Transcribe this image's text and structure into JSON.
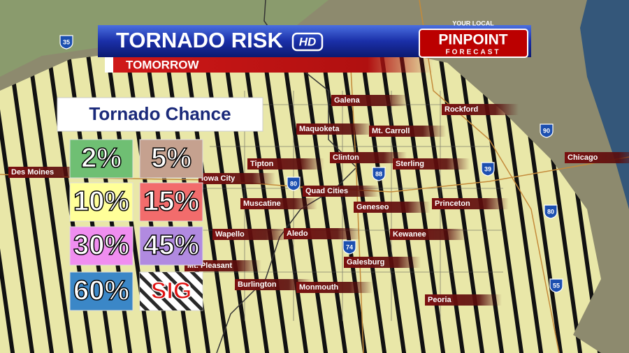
{
  "header": {
    "title": "TORNADO RISK",
    "badge": "HD",
    "subtitle": "TOMORROW"
  },
  "branding": {
    "top": "YOUR LOCAL",
    "main": "PINPOINT",
    "bottom": "FORECAST"
  },
  "legend": {
    "title": "Tornado Chance",
    "items": [
      "2%",
      "5%",
      "10%",
      "15%",
      "30%",
      "45%",
      "60%",
      "SIG"
    ]
  },
  "cities": [
    "Galena",
    "Rockford",
    "Maquoketa",
    "Mt. Carroll",
    "Clinton",
    "Chicago",
    "Tipton",
    "Sterling",
    "Des Moines",
    "Iowa City",
    "Quad Cities",
    "Muscatine",
    "Geneseo",
    "Princeton",
    "Wapello",
    "Aledo",
    "Kewanee",
    "Galesburg",
    "Mt. Pleasant",
    "Burlington",
    "Monmouth",
    "Peoria"
  ],
  "interstates": [
    "35",
    "80",
    "88",
    "74",
    "90",
    "39",
    "80",
    "55"
  ]
}
